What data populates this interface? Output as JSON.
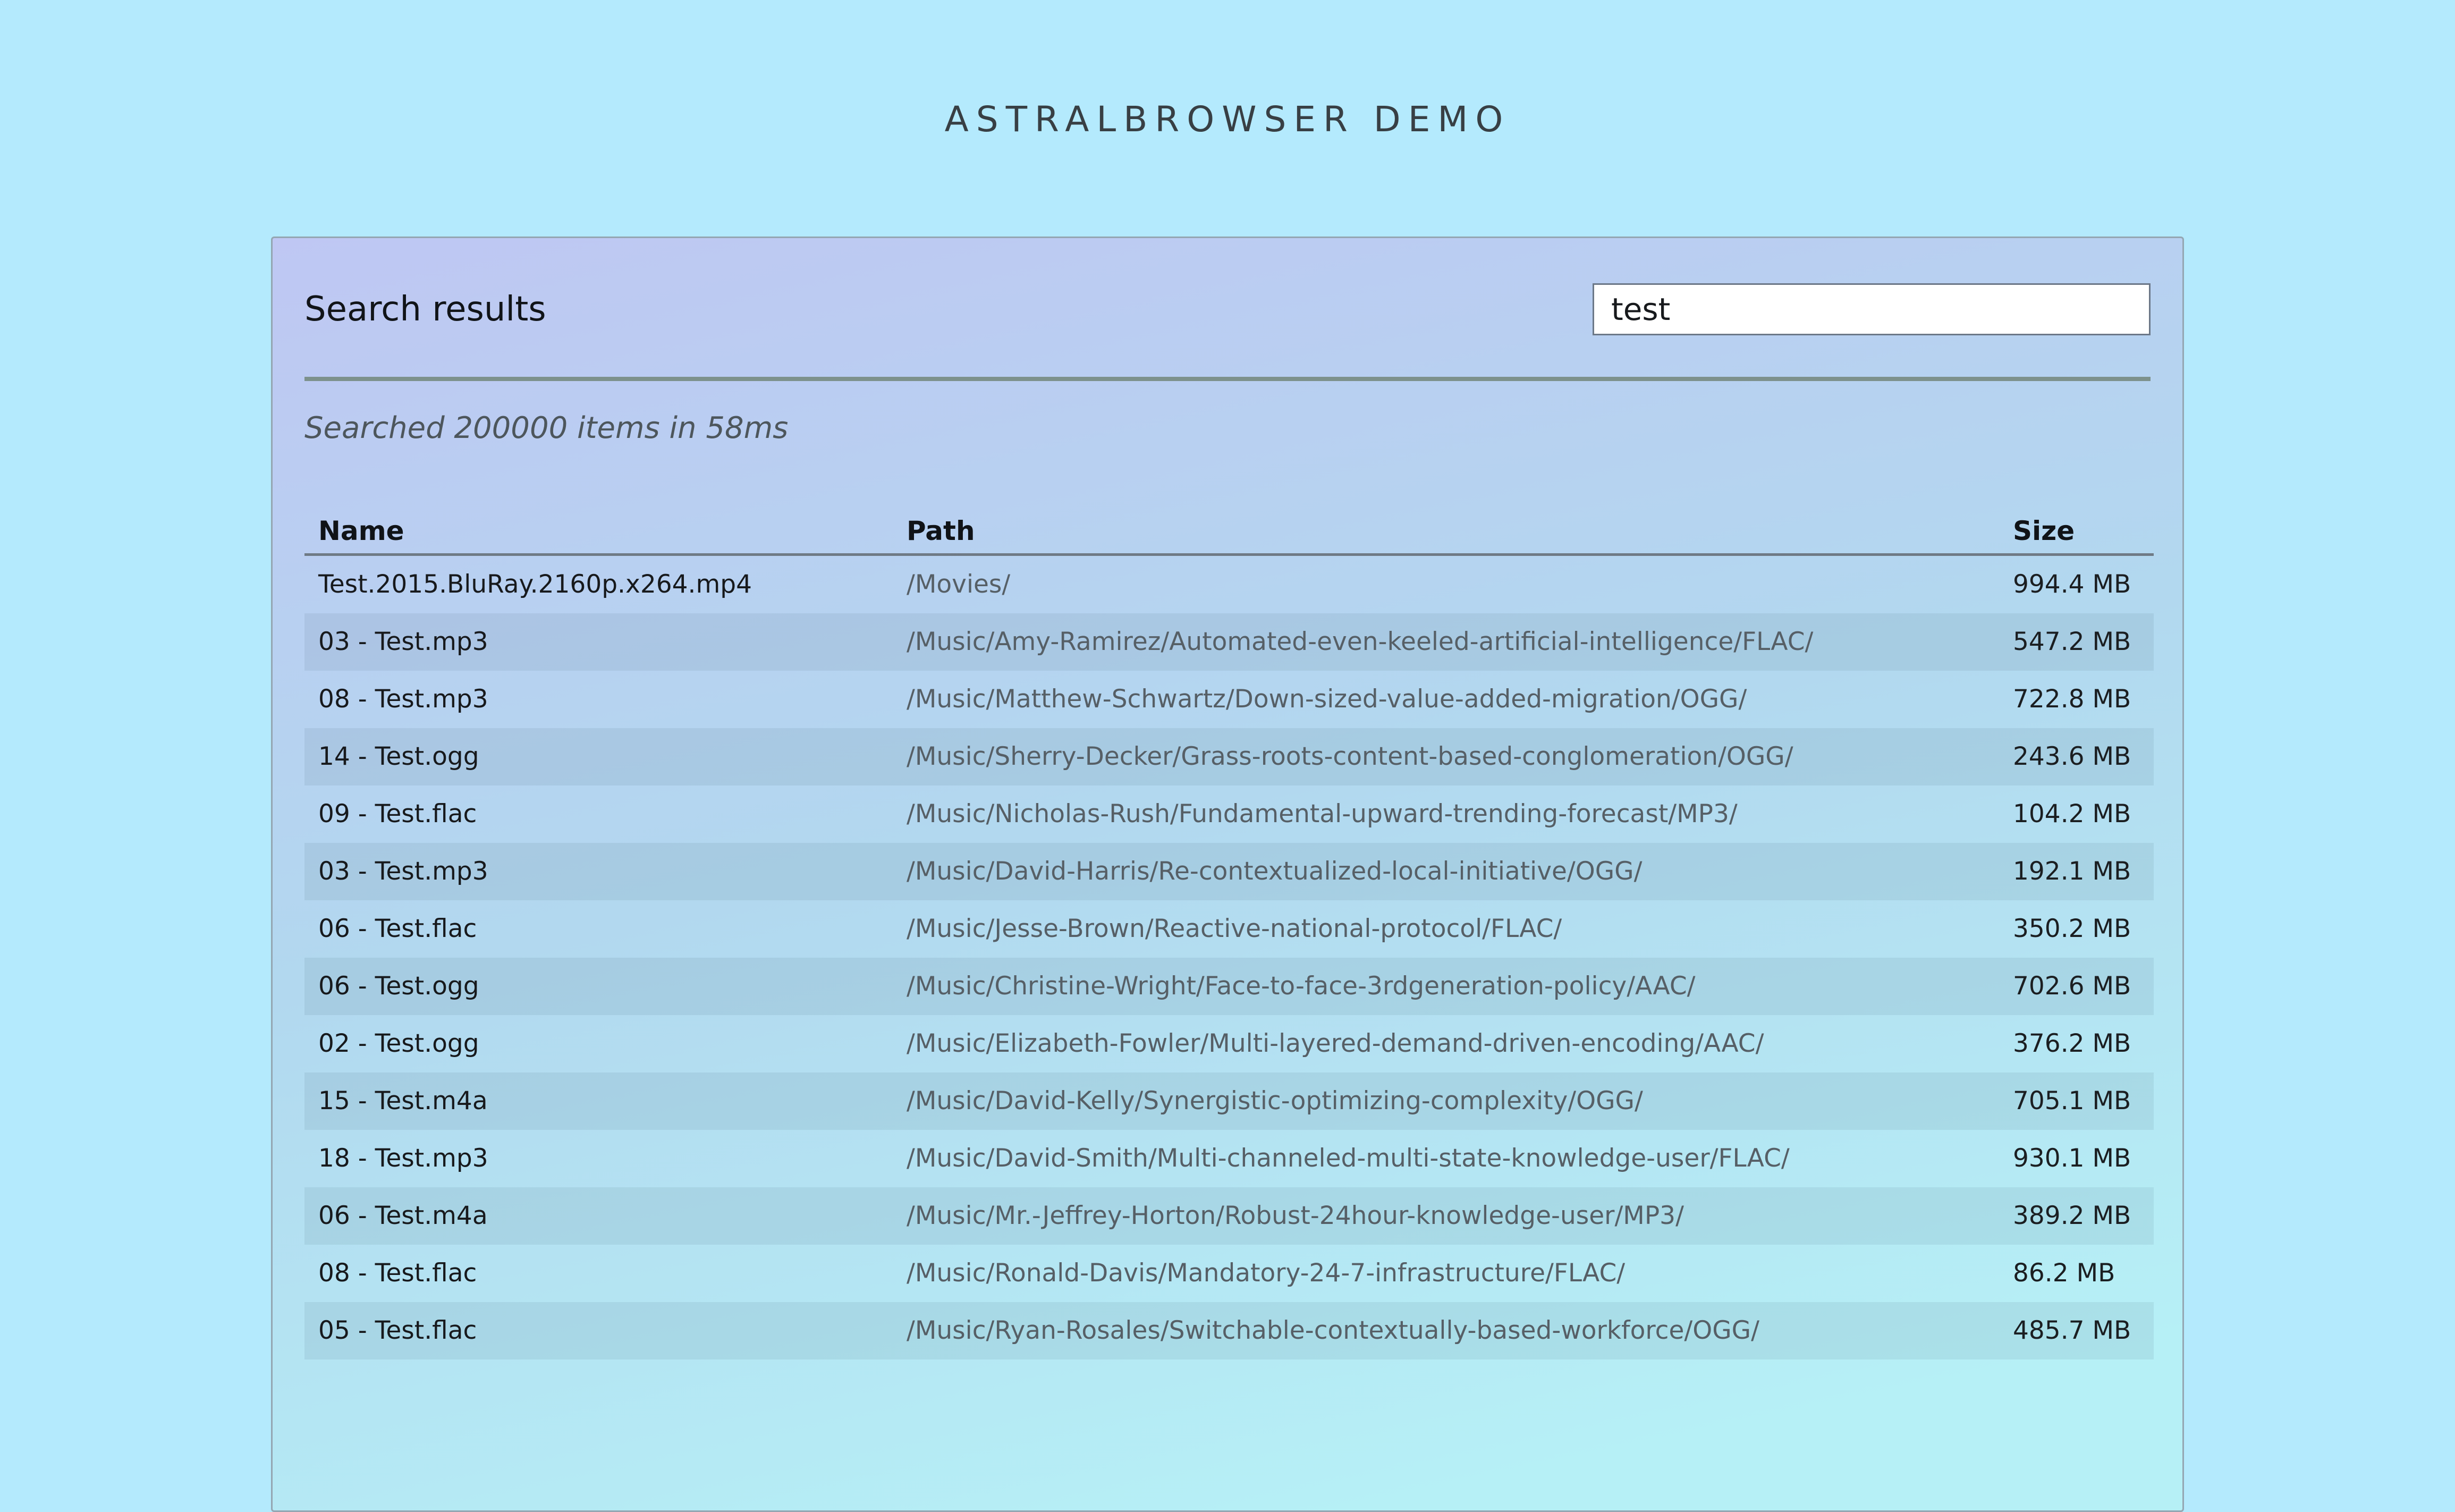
{
  "page": {
    "title": "ASTRALBROWSER DEMO"
  },
  "panel": {
    "heading": "Search results",
    "search": {
      "value": "test"
    },
    "status": "Searched 200000 items in 58ms",
    "table": {
      "columns": [
        "Name",
        "Path",
        "Size"
      ],
      "rows": [
        {
          "name": "Test.2015.BluRay.2160p.x264.mp4",
          "path": "/Movies/",
          "size": "994.4 MB"
        },
        {
          "name": "03 - Test.mp3",
          "path": "/Music/Amy-Ramirez/Automated-even-keeled-artificial-intelligence/FLAC/",
          "size": "547.2 MB"
        },
        {
          "name": "08 - Test.mp3",
          "path": "/Music/Matthew-Schwartz/Down-sized-value-added-migration/OGG/",
          "size": "722.8 MB"
        },
        {
          "name": "14 - Test.ogg",
          "path": "/Music/Sherry-Decker/Grass-roots-content-based-conglomeration/OGG/",
          "size": "243.6 MB"
        },
        {
          "name": "09 - Test.flac",
          "path": "/Music/Nicholas-Rush/Fundamental-upward-trending-forecast/MP3/",
          "size": "104.2 MB"
        },
        {
          "name": "03 - Test.mp3",
          "path": "/Music/David-Harris/Re-contextualized-local-initiative/OGG/",
          "size": "192.1 MB"
        },
        {
          "name": "06 - Test.flac",
          "path": "/Music/Jesse-Brown/Reactive-national-protocol/FLAC/",
          "size": "350.2 MB"
        },
        {
          "name": "06 - Test.ogg",
          "path": "/Music/Christine-Wright/Face-to-face-3rdgeneration-policy/AAC/",
          "size": "702.6 MB"
        },
        {
          "name": "02 - Test.ogg",
          "path": "/Music/Elizabeth-Fowler/Multi-layered-demand-driven-encoding/AAC/",
          "size": "376.2 MB"
        },
        {
          "name": "15 - Test.m4a",
          "path": "/Music/David-Kelly/Synergistic-optimizing-complexity/OGG/",
          "size": "705.1 MB"
        },
        {
          "name": "18 - Test.mp3",
          "path": "/Music/David-Smith/Multi-channeled-multi-state-knowledge-user/FLAC/",
          "size": "930.1 MB"
        },
        {
          "name": "06 - Test.m4a",
          "path": "/Music/Mr.-Jeffrey-Horton/Robust-24hour-knowledge-user/MP3/",
          "size": "389.2 MB"
        },
        {
          "name": "08 - Test.flac",
          "path": "/Music/Ronald-Davis/Mandatory-24-7-infrastructure/FLAC/",
          "size": "86.2 MB"
        },
        {
          "name": "05 - Test.flac",
          "path": "/Music/Ryan-Rosales/Switchable-contextually-based-workforce/OGG/",
          "size": "485.7 MB"
        }
      ]
    }
  },
  "colors": {
    "page_background": "#b4eafd",
    "panel_gradient_top": "#bfc7f3",
    "panel_gradient_bottom": "#b6f0f6",
    "panel_border": "#94a6b2",
    "stripe_overlay": "rgba(70,100,120,0.10)",
    "divider": "#7d918c",
    "header_underline": "#6f7a85",
    "path_text": "#565f66",
    "status_text": "#4d565c"
  }
}
